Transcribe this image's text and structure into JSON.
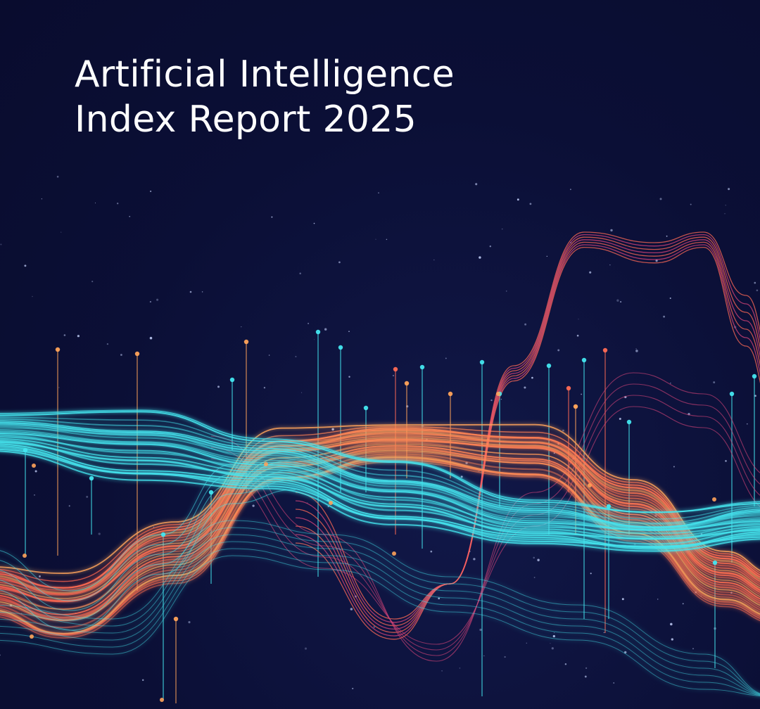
{
  "cover": {
    "title_line1": "Artificial Intelligence",
    "title_line2": "Index Report 2025"
  },
  "palette": {
    "background": "#0b0f36",
    "title": "#ffffff",
    "cyan": "#45e6ef",
    "coral": "#ff6a55",
    "orange": "#ffa35a",
    "magenta": "#d9457a"
  }
}
